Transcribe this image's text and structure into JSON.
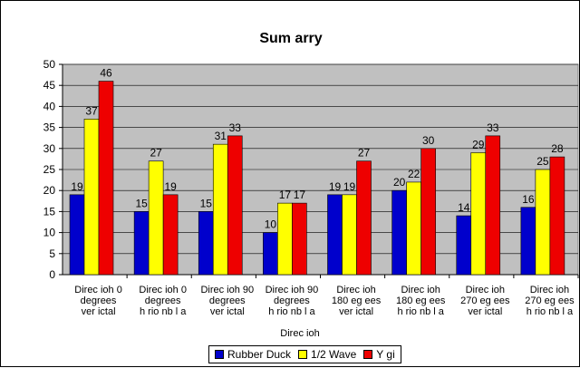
{
  "chart_data": {
    "type": "bar",
    "title": "Sum   arry",
    "xlabel": "Direc ioh",
    "ylabel": "",
    "ylim": [
      0,
      50
    ],
    "yticks": [
      0,
      5,
      10,
      15,
      20,
      25,
      30,
      35,
      40,
      45,
      50
    ],
    "grid": true,
    "legend_position": "bottom",
    "plot_background": "#c0c0c0",
    "categories": [
      [
        "Direc ioh 0",
        "degrees",
        "ver ictal"
      ],
      [
        "Direc ioh 0",
        "degrees",
        "h rio nb l a"
      ],
      [
        "Direc ioh 90",
        "degrees",
        "ver ictal"
      ],
      [
        "Direc ioh 90",
        "degrees",
        "h rio nb l a"
      ],
      [
        "Direc ioh",
        "180   eg ees",
        "ver ictal"
      ],
      [
        "Direc ioh",
        "180   eg ees",
        "h rio nb l a"
      ],
      [
        "Direc ioh",
        "270   eg ees",
        "ver ictal"
      ],
      [
        "Direc ioh",
        "270   eg ees",
        "h rio nb l a"
      ]
    ],
    "series": [
      {
        "name": "Rubber Duck",
        "color": "#0000cc",
        "values": [
          19,
          15,
          15,
          10,
          19,
          20,
          14,
          16
        ]
      },
      {
        "name": "1/2 Wave",
        "color": "#ffff00",
        "values": [
          37,
          27,
          31,
          17,
          19,
          22,
          29,
          25
        ]
      },
      {
        "name": "Y gi",
        "color": "#ee0000",
        "values": [
          46,
          19,
          33,
          17,
          27,
          30,
          33,
          28
        ]
      }
    ]
  }
}
